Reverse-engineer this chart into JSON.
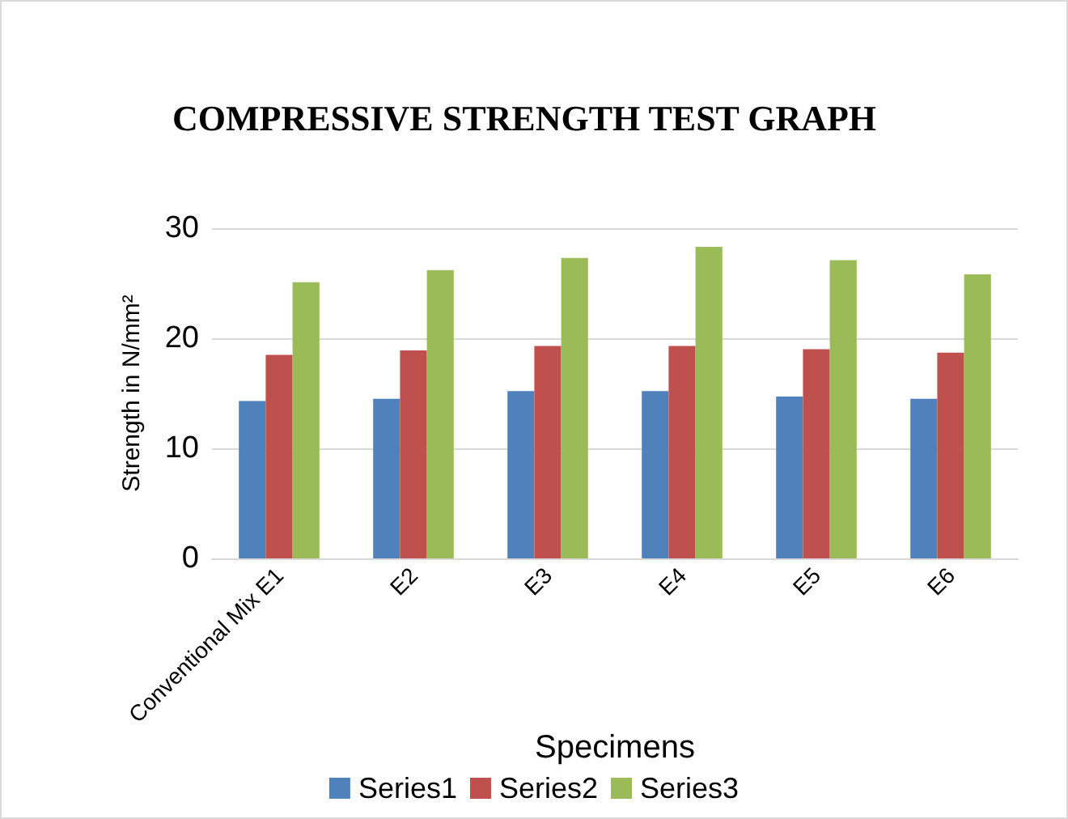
{
  "chart_data": {
    "type": "bar",
    "title": "COMPRESSIVE STRENGTH TEST GRAPH",
    "xlabel": "Specimens",
    "ylabel": "Strength in N/mm²",
    "categories": [
      "Conventional Mix E1",
      "E2",
      "E3",
      "E4",
      "E5",
      "E6"
    ],
    "series": [
      {
        "name": "Series1",
        "color": "#4f81bd",
        "values": [
          14.3,
          14.5,
          15.2,
          15.2,
          14.7,
          14.5
        ]
      },
      {
        "name": "Series2",
        "color": "#c0504d",
        "values": [
          18.5,
          18.9,
          19.3,
          19.3,
          19.0,
          18.7
        ]
      },
      {
        "name": "Series3",
        "color": "#9bbb59",
        "values": [
          25.1,
          26.2,
          27.3,
          28.3,
          27.1,
          25.8
        ]
      }
    ],
    "ylim": [
      0,
      30
    ],
    "yticks": [
      0,
      10,
      20,
      30
    ],
    "grid": "y",
    "legend": "bottom"
  }
}
